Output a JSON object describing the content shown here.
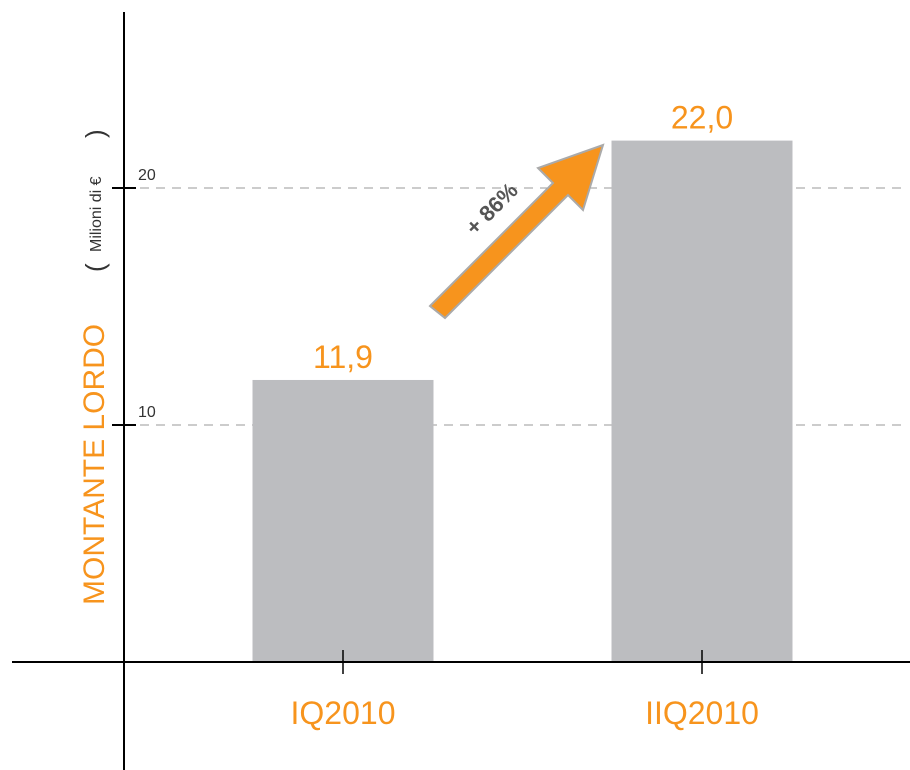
{
  "chart_data": {
    "type": "bar",
    "categories": [
      "IQ2010",
      "IIQ2010"
    ],
    "values": [
      11.9,
      22.0
    ],
    "value_labels": [
      "11,9",
      "22,0"
    ],
    "ylabel": "MONTANTE LORDO",
    "yunit": "Milioni di €",
    "yticks": [
      10,
      20
    ],
    "ytick_labels": [
      "10",
      "20"
    ],
    "ylim": [
      0,
      26
    ],
    "grid": "dashed horizontal at ticks",
    "annotation": "+ 86%",
    "colors": {
      "bar": "#bcbdc0",
      "accent": "#f7941d",
      "axis": "#000000",
      "grid": "#999999"
    }
  }
}
